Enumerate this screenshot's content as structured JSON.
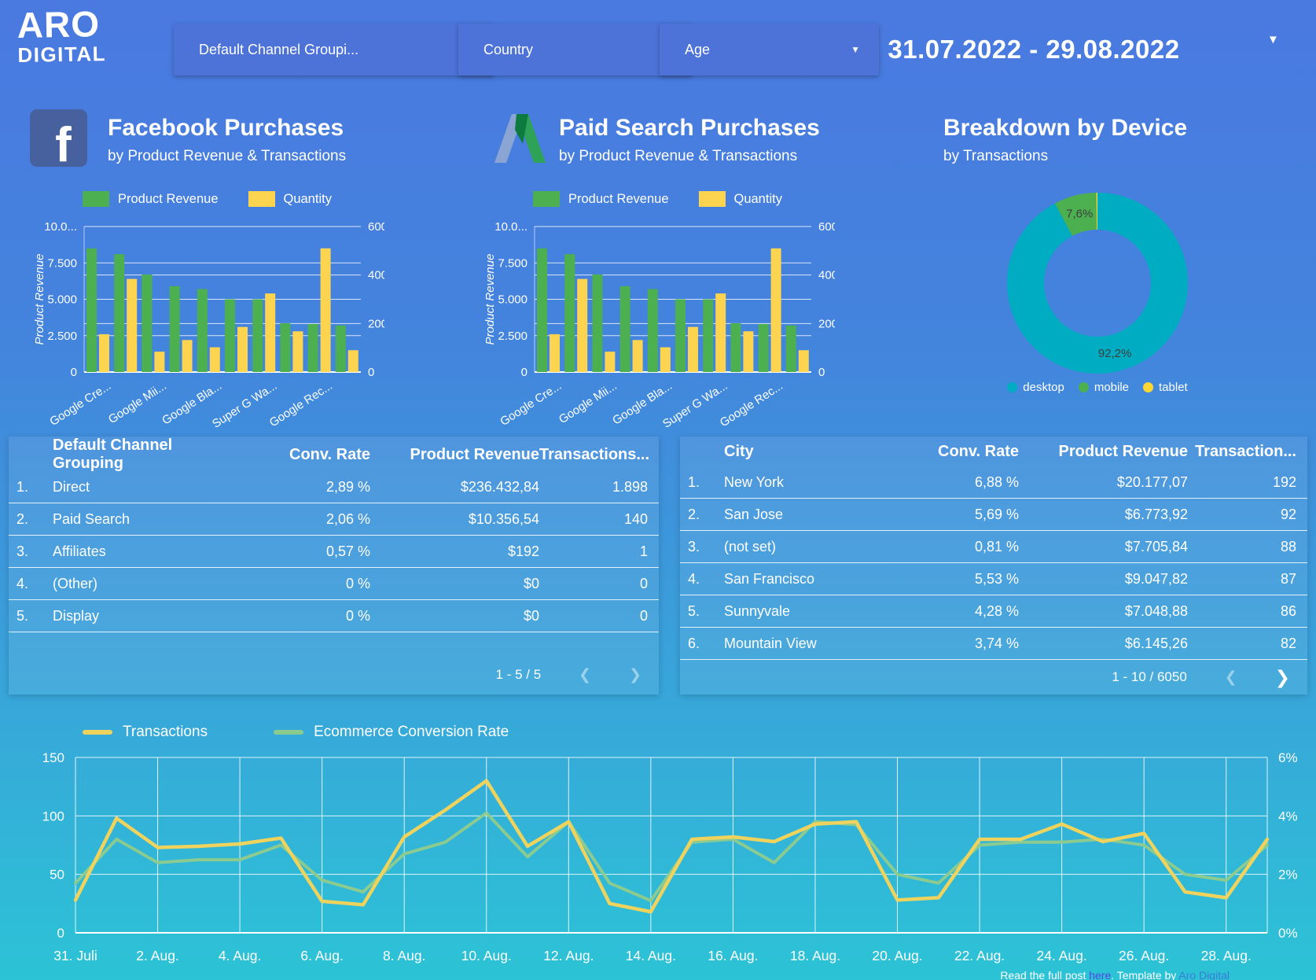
{
  "header": {
    "logo_line1": "ARO",
    "logo_line2": "DIGITAL",
    "filters": [
      {
        "label": "Default Channel Groupi..."
      },
      {
        "label": "Country"
      },
      {
        "label": "Age"
      }
    ],
    "date_range": "31.07.2022 - 29.08.2022"
  },
  "sections": {
    "facebook": {
      "title": "Facebook Purchases",
      "subtitle": "by Product Revenue & Transactions"
    },
    "paid_search": {
      "title": "Paid Search Purchases",
      "subtitle": "by Product Revenue & Transactions"
    },
    "device": {
      "title": "Breakdown by Device",
      "subtitle": "by Transactions"
    }
  },
  "chart_data": [
    {
      "id": "facebook_purchases",
      "type": "bar",
      "title": "Facebook Purchases by Product Revenue & Transactions",
      "num_groups": 10,
      "categories_labeled": [
        "Google Cre...",
        "Google Mii...",
        "Google Bla...",
        "Super G Wa...",
        "Google Rec..."
      ],
      "ylabel_left": "Product Revenue",
      "yticks_left": [
        "0",
        "2.500",
        "5.000",
        "7.500",
        "10.0..."
      ],
      "ylim_left": [
        0,
        10000
      ],
      "yticks_right": [
        "0",
        "200",
        "400",
        "600"
      ],
      "ylim_right": [
        0,
        600
      ],
      "series": [
        {
          "name": "Product Revenue",
          "color": "#4caf50",
          "axis": "left",
          "values": [
            8500,
            8100,
            6700,
            5900,
            5700,
            5000,
            5000,
            3350,
            3300,
            3200
          ]
        },
        {
          "name": "Quantity",
          "color": "#fdd44f",
          "axis": "right",
          "values": [
            156,
            384,
            84,
            132,
            102,
            186,
            324,
            168,
            510,
            90
          ]
        }
      ]
    },
    {
      "id": "paid_search_purchases",
      "type": "bar",
      "title": "Paid Search Purchases by Product Revenue & Transactions",
      "num_groups": 10,
      "categories_labeled": [
        "Google Cre...",
        "Google Mii...",
        "Google Bla...",
        "Super G Wa...",
        "Google Rec..."
      ],
      "ylabel_left": "Product Revenue",
      "yticks_left": [
        "0",
        "2.500",
        "5.000",
        "7.500",
        "10.0..."
      ],
      "ylim_left": [
        0,
        10000
      ],
      "yticks_right": [
        "0",
        "200",
        "400",
        "600"
      ],
      "ylim_right": [
        0,
        600
      ],
      "series": [
        {
          "name": "Product Revenue",
          "color": "#4caf50",
          "axis": "left",
          "values": [
            8500,
            8100,
            6700,
            5900,
            5700,
            5000,
            5000,
            3350,
            3300,
            3200
          ]
        },
        {
          "name": "Quantity",
          "color": "#fdd44f",
          "axis": "right",
          "values": [
            156,
            384,
            84,
            132,
            102,
            186,
            324,
            168,
            510,
            90
          ]
        }
      ]
    },
    {
      "id": "breakdown_by_device",
      "type": "pie",
      "title": "Breakdown by Device by Transactions",
      "labels": [
        "desktop",
        "mobile",
        "tablet"
      ],
      "values": [
        92.2,
        7.6,
        0.2
      ],
      "colors": [
        "#00acc1",
        "#4caf50",
        "#fdd835"
      ],
      "labels_shown": [
        "92,2%",
        "7,6%",
        ""
      ],
      "label_color": "#3e3e3e"
    },
    {
      "id": "daily_trend",
      "type": "line",
      "x_labels": [
        "31. Juli",
        "2. Aug.",
        "4. Aug.",
        "6. Aug.",
        "8. Aug.",
        "10. Aug.",
        "12. Aug.",
        "14. Aug.",
        "16. Aug.",
        "18. Aug.",
        "20. Aug.",
        "22. Aug.",
        "24. Aug.",
        "26. Aug.",
        "28. Aug."
      ],
      "yticks_left": [
        "0",
        "50",
        "100",
        "150"
      ],
      "ylim_left": [
        0,
        150
      ],
      "yticks_right": [
        "0%",
        "2%",
        "4%",
        "6%"
      ],
      "ylim_right": [
        0,
        6
      ],
      "series": [
        {
          "name": "Transactions",
          "color": "#efd35d",
          "axis": "left",
          "values": [
            28,
            98,
            73,
            74,
            76,
            81,
            27,
            24,
            82,
            105,
            130,
            74,
            95,
            25,
            18,
            80,
            82,
            78,
            93,
            95,
            28,
            30,
            80,
            80,
            93,
            78,
            85,
            35,
            30,
            80
          ]
        },
        {
          "name": "Ecommerce Conversion Rate",
          "color": "#8ccb90",
          "axis": "right",
          "values": [
            1.7,
            3.2,
            2.4,
            2.5,
            2.5,
            3.0,
            1.8,
            1.4,
            2.7,
            3.1,
            4.1,
            2.6,
            3.8,
            1.7,
            1.1,
            3.1,
            3.2,
            2.4,
            3.8,
            3.7,
            2.0,
            1.7,
            3.0,
            3.1,
            3.1,
            3.2,
            3.0,
            2.0,
            1.8,
            3.0
          ]
        }
      ]
    }
  ],
  "tables": [
    {
      "columns": [
        {
          "label": "Default Channel Grouping",
          "align": "left"
        },
        {
          "label": "Conv. Rate",
          "align": "right"
        },
        {
          "label": "Product Revenue",
          "align": "right"
        },
        {
          "label": "Transactions...",
          "align": "right"
        }
      ],
      "rows": [
        [
          "Direct",
          "2,89 %",
          "$236.432,84",
          "1.898"
        ],
        [
          "Paid Search",
          "2,06 %",
          "$10.356,54",
          "140"
        ],
        [
          "Affiliates",
          "0,57 %",
          "$192",
          "1"
        ],
        [
          "(Other)",
          "0 %",
          "$0",
          "0"
        ],
        [
          "Display",
          "0 %",
          "$0",
          "0"
        ]
      ],
      "pagination": {
        "label": "1 - 5 / 5",
        "prev_enabled": false,
        "next_enabled": false
      }
    },
    {
      "columns": [
        {
          "label": "City",
          "align": "left"
        },
        {
          "label": "Conv. Rate",
          "align": "right"
        },
        {
          "label": "Product Revenue",
          "align": "right"
        },
        {
          "label": "Transaction...",
          "align": "right"
        }
      ],
      "rows": [
        [
          "New York",
          "6,88 %",
          "$20.177,07",
          "192"
        ],
        [
          "San Jose",
          "5,69 %",
          "$6.773,92",
          "92"
        ],
        [
          "(not set)",
          "0,81 %",
          "$7.705,84",
          "88"
        ],
        [
          "San Francisco",
          "5,53 %",
          "$9.047,82",
          "87"
        ],
        [
          "Sunnyvale",
          "4,28 %",
          "$7.048,88",
          "86"
        ],
        [
          "Mountain View",
          "3,74 %",
          "$6.145,26",
          "82"
        ]
      ],
      "pagination": {
        "label": "1 - 10 / 6050",
        "prev_enabled": false,
        "next_enabled": true
      }
    }
  ],
  "footer": {
    "prefix": "Read the full post ",
    "link1": "here",
    "middle": ". Template by ",
    "link2": "Aro Digital",
    "link1_color": "#5246e0",
    "link2_color": "#3a7bd5"
  }
}
